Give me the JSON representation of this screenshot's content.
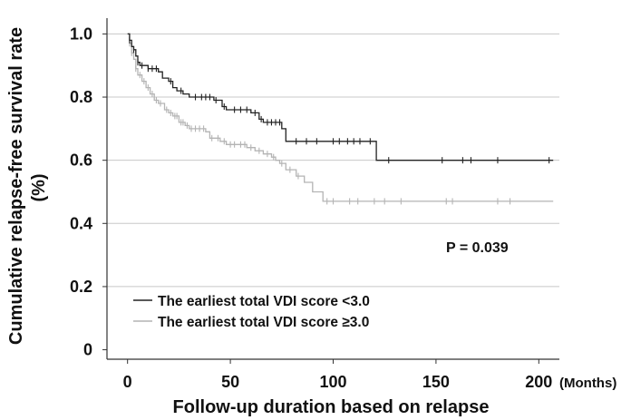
{
  "chart_data": {
    "type": "line",
    "subtype": "kaplan-meier",
    "title": "",
    "xlabel": "Follow-up duration based on relapse",
    "x_unit": "(Months)",
    "ylabel_line1": "Cumulative relapse-free survival rate",
    "ylabel_line2": "(%)",
    "xlim": [
      -10,
      210
    ],
    "ylim": [
      -0.03,
      1.05
    ],
    "x_ticks": [
      0,
      50,
      100,
      150,
      200
    ],
    "y_ticks": [
      0,
      0.2,
      0.4,
      0.6,
      0.8,
      1.0
    ],
    "x_tick_labels": [
      "0",
      "50",
      "100",
      "150",
      "200"
    ],
    "y_tick_labels": [
      "0",
      "0.2",
      "0.4",
      "0.6",
      "0.8",
      "1.0"
    ],
    "grid": "horizontal",
    "legend_position": "bottom-left",
    "annotation": "P = 0.039",
    "colors": {
      "series1": "#222222",
      "series2": "#b4b4b4",
      "grid": "#c8c8c8",
      "axis": "#333333"
    },
    "series": [
      {
        "name": "The earliest total VDI score <3.0",
        "step_points": [
          [
            0,
            1.0
          ],
          [
            1,
            0.98
          ],
          [
            2,
            0.96
          ],
          [
            3,
            0.95
          ],
          [
            4,
            0.93
          ],
          [
            5,
            0.91
          ],
          [
            6,
            0.9
          ],
          [
            10,
            0.89
          ],
          [
            15,
            0.88
          ],
          [
            17,
            0.86
          ],
          [
            20,
            0.85
          ],
          [
            22,
            0.83
          ],
          [
            24,
            0.82
          ],
          [
            27,
            0.81
          ],
          [
            30,
            0.8
          ],
          [
            42,
            0.79
          ],
          [
            46,
            0.77
          ],
          [
            48,
            0.76
          ],
          [
            60,
            0.75
          ],
          [
            64,
            0.73
          ],
          [
            66,
            0.72
          ],
          [
            75,
            0.7
          ],
          [
            77,
            0.66
          ],
          [
            121,
            0.6
          ],
          [
            207,
            0.6
          ]
        ],
        "censored_x": [
          1,
          3,
          5,
          7,
          10,
          12,
          14,
          21,
          26,
          33,
          36,
          38,
          40,
          43,
          47,
          52,
          55,
          58,
          62,
          65,
          68,
          70,
          72,
          74,
          82,
          87,
          92,
          100,
          103,
          107,
          110,
          113,
          118,
          127,
          153,
          163,
          167,
          180,
          205
        ]
      },
      {
        "name": "The earliest total VDI score ≥3.0",
        "step_points": [
          [
            0,
            1.0
          ],
          [
            1,
            0.97
          ],
          [
            2,
            0.94
          ],
          [
            3,
            0.92
          ],
          [
            4,
            0.89
          ],
          [
            5,
            0.87
          ],
          [
            7,
            0.85
          ],
          [
            9,
            0.83
          ],
          [
            11,
            0.81
          ],
          [
            13,
            0.79
          ],
          [
            15,
            0.78
          ],
          [
            18,
            0.76
          ],
          [
            20,
            0.75
          ],
          [
            22,
            0.74
          ],
          [
            25,
            0.72
          ],
          [
            28,
            0.71
          ],
          [
            30,
            0.7
          ],
          [
            38,
            0.69
          ],
          [
            40,
            0.67
          ],
          [
            45,
            0.66
          ],
          [
            48,
            0.65
          ],
          [
            58,
            0.64
          ],
          [
            62,
            0.63
          ],
          [
            66,
            0.62
          ],
          [
            70,
            0.61
          ],
          [
            72,
            0.6
          ],
          [
            74,
            0.59
          ],
          [
            77,
            0.57
          ],
          [
            82,
            0.55
          ],
          [
            86,
            0.53
          ],
          [
            90,
            0.5
          ],
          [
            95,
            0.47
          ],
          [
            207,
            0.47
          ]
        ],
        "censored_x": [
          1,
          2,
          4,
          6,
          8,
          10,
          12,
          14,
          16,
          19,
          21,
          23,
          24,
          26,
          27,
          29,
          31,
          33,
          35,
          37,
          41,
          44,
          47,
          50,
          52,
          55,
          57,
          60,
          64,
          68,
          71,
          75,
          79,
          83,
          97,
          100,
          108,
          112,
          120,
          125,
          133,
          155,
          158,
          180,
          186
        ]
      }
    ]
  }
}
